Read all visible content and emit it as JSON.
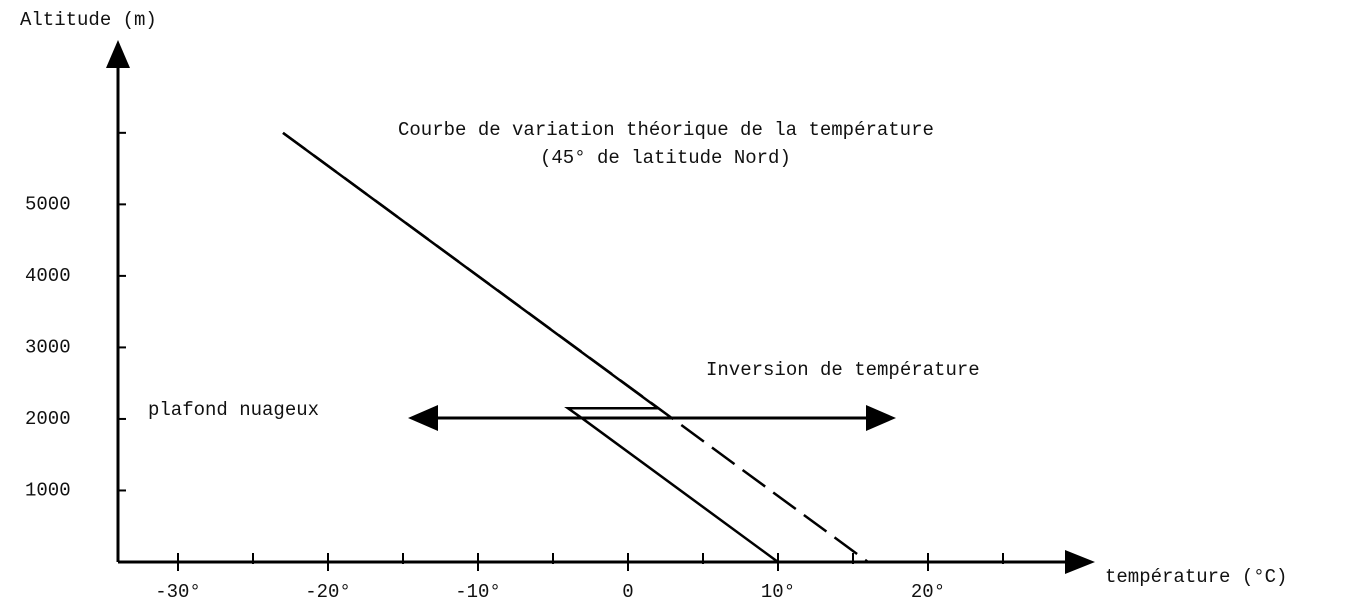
{
  "chart_data": {
    "type": "line",
    "xlabel": "température (°C)",
    "ylabel": "Altitude (m)",
    "xlim": [
      -34,
      31
    ],
    "ylim": [
      0,
      7200
    ],
    "xticks": [
      {
        "value": -30,
        "label": "-30°"
      },
      {
        "value": -20,
        "label": "-20°"
      },
      {
        "value": -10,
        "label": "-10°"
      },
      0,
      {
        "value": 10,
        "label": "10°"
      },
      {
        "value": 20,
        "label": "20°"
      }
    ],
    "xminor_ticks": [
      -25,
      -15,
      -5,
      5,
      15,
      25
    ],
    "yticks": [
      1000,
      2000,
      3000,
      4000,
      5000
    ],
    "yminor_ticks": [
      6000
    ],
    "series": [
      {
        "color": "#000000",
        "style": "solid",
        "x": [
          -23,
          2,
          -4,
          -3,
          10
        ],
        "values": [
          6000,
          2150,
          2150,
          2000,
          0
        ]
      },
      {
        "color": "#000000",
        "style": "dashed",
        "x": [
          -23,
          16
        ],
        "values": [
          6000,
          0
        ]
      }
    ],
    "annotations": [
      "Courbe de variation théorique de la température",
      "(45° de latitude Nord)",
      "Inversion de température",
      "plafond nuageux"
    ]
  }
}
